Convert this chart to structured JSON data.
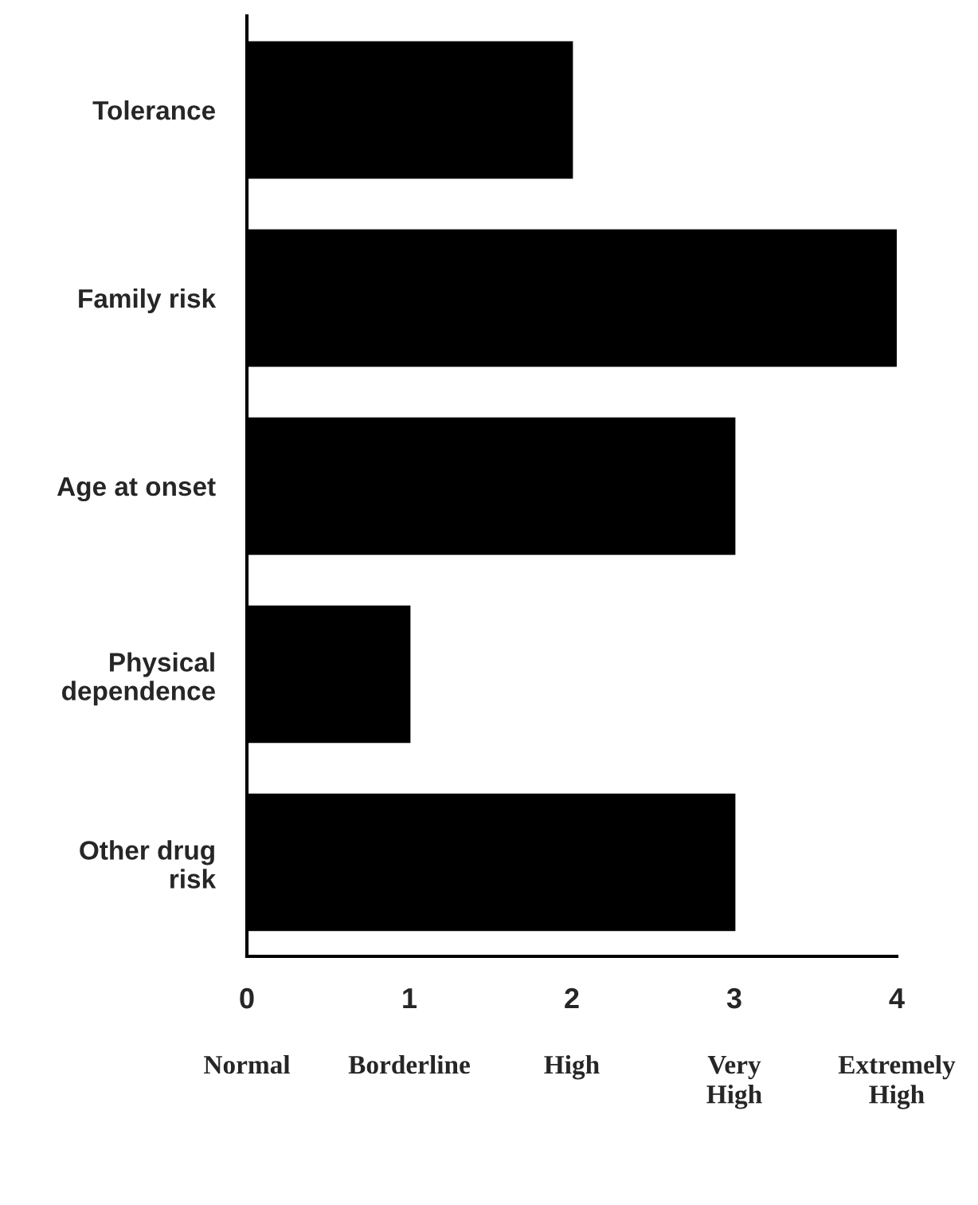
{
  "chart_data": {
    "type": "bar",
    "orientation": "horizontal",
    "categories": [
      "Tolerance",
      "Family risk",
      "Age at onset",
      "Physical\ndependence",
      "Other drug\nrisk"
    ],
    "values": [
      2,
      4,
      3,
      1,
      3
    ],
    "color": "#000000",
    "xlim": [
      0,
      4
    ],
    "xticks": [
      0,
      1,
      2,
      3,
      4
    ],
    "annotations": [
      "Normal",
      "Borderline",
      "High",
      "Very\nHigh",
      "Extremely\nHigh"
    ],
    "grid": false,
    "legend": false
  }
}
